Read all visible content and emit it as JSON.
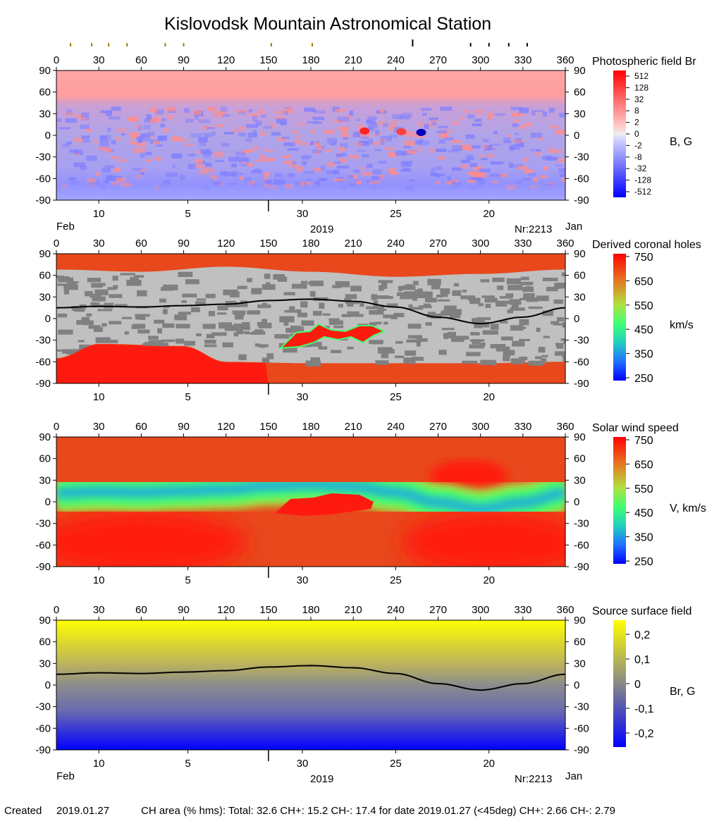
{
  "title": "Kislovodsk Mountain Astronomical Station",
  "footer": {
    "created_label": "Created",
    "created_date": "2019.01.27",
    "ch_area": "CH area (% hms): Total: 32.6 CH+: 15.2   CH-: 17.4 for date 2019.01.27 (<45deg) CH+: 2.66    CH-: 2.79"
  },
  "axes": {
    "x_ticks": [
      0,
      30,
      60,
      90,
      120,
      150,
      180,
      210,
      240,
      270,
      300,
      330,
      360
    ],
    "y_ticks": [
      90,
      60,
      30,
      0,
      -30,
      -60,
      -90
    ],
    "xlim": [
      0,
      360
    ],
    "ylim": [
      -90,
      90
    ],
    "date_ticks": [
      {
        "label": "10",
        "lon": 30
      },
      {
        "label": "5",
        "lon": 93
      },
      {
        "label": "30",
        "lon": 174
      },
      {
        "label": "25",
        "lon": 240
      },
      {
        "label": "20",
        "lon": 306
      }
    ],
    "month_start": "Feb",
    "month_end": "Jan",
    "year": "2019",
    "carrington": "Nr:2213",
    "date_marker_lon": 150,
    "top_markers_gold": [
      10,
      25,
      37,
      50,
      77,
      90,
      152,
      181
    ],
    "top_markers_black": [
      252,
      293,
      306,
      320,
      333
    ]
  },
  "panels": [
    {
      "id": "photospheric",
      "legend_title": "Photospheric field Br",
      "unit": "B, G",
      "colorbar_labels": [
        "512",
        "128",
        "32",
        "8",
        "2",
        "0",
        "-2",
        "-8",
        "-32",
        "-128",
        "-512"
      ],
      "show_month_labels": true
    },
    {
      "id": "coronal-holes",
      "legend_title": "Derived coronal holes",
      "unit": "km/s",
      "colorbar_labels": [
        "750",
        "650",
        "550",
        "450",
        "350",
        "250"
      ],
      "show_month_labels": false
    },
    {
      "id": "solar-wind",
      "legend_title": "Solar wind speed",
      "unit": "V, km/s",
      "colorbar_labels": [
        "750",
        "650",
        "550",
        "450",
        "350",
        "250"
      ],
      "show_month_labels": false
    },
    {
      "id": "source-surface",
      "legend_title": "Source surface field",
      "unit": "Br, G",
      "colorbar_labels": [
        "0,2",
        "0,1",
        "0",
        "-0,1",
        "-0,2"
      ],
      "show_month_labels": true
    }
  ],
  "colors": {
    "positive_field": "#ff9a9a",
    "negative_field": "#9a9aff",
    "ch_background": "#e8481c",
    "ch_fast": "#ff1a10",
    "quiet_light": "#c0c0c0",
    "quiet_dark": "#808080",
    "neutral_line": "#000000",
    "source_top": "#ffff00",
    "source_bottom": "#0000ff"
  },
  "chart_data": {
    "type": "heatmap",
    "xlabel": "",
    "ylabel": "",
    "xlim": [
      0,
      360
    ],
    "ylim": [
      -90,
      90
    ],
    "neutral_line": {
      "lon": [
        0,
        30,
        60,
        90,
        120,
        150,
        180,
        210,
        240,
        270,
        300,
        330,
        360
      ],
      "lat": [
        15,
        17,
        16,
        18,
        20,
        25,
        27,
        24,
        16,
        2,
        -7,
        2,
        15
      ]
    },
    "coronal_holes_polar": {
      "north_boundary_lon": [
        0,
        60,
        120,
        180,
        240,
        300,
        360
      ],
      "north_boundary_lat": [
        68,
        65,
        72,
        65,
        58,
        62,
        68
      ],
      "south_boundary_lon": [
        0,
        30,
        90,
        120,
        180,
        240,
        300,
        360
      ],
      "south_boundary_lat": [
        -55,
        -35,
        -38,
        -60,
        -62,
        -62,
        -62,
        -60
      ]
    },
    "coronal_holes_mid": [
      {
        "lon_range": [
          155,
          240
        ],
        "lat_range": [
          -35,
          -8
        ]
      }
    ]
  }
}
